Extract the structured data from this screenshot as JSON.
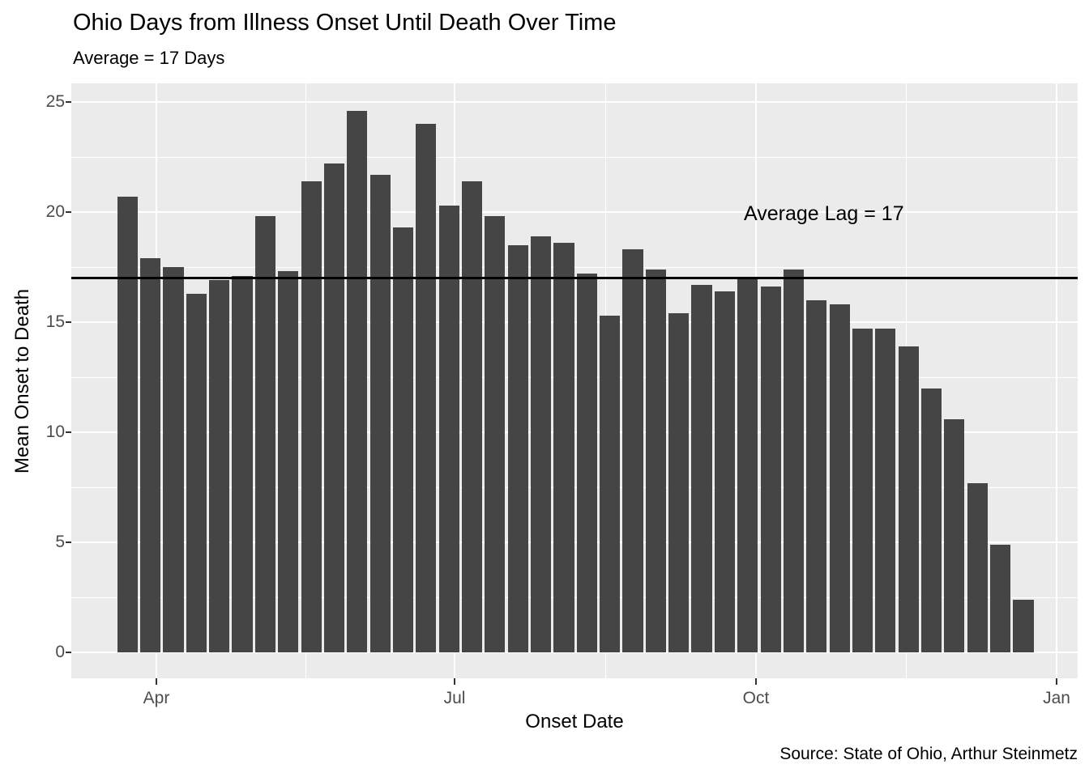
{
  "header": {
    "title": "Ohio Days from Illness Onset Until Death Over Time",
    "subtitle": "Average = 17 Days"
  },
  "axes": {
    "y": {
      "label": "Mean Onset to Death",
      "ticks": [
        0,
        5,
        10,
        15,
        20,
        25
      ],
      "minor_ticks": [
        2.5,
        7.5,
        12.5,
        17.5,
        22.5
      ]
    },
    "x": {
      "label": "Onset Date",
      "ticks": [
        "Apr",
        "Jul",
        "Oct",
        "Jan"
      ]
    }
  },
  "annotation": {
    "text": "Average Lag = 17"
  },
  "caption": {
    "text": "Source: State of Ohio, Arthur Steinmetz"
  },
  "colors": {
    "bar": "#454545",
    "panel_background": "#EBEBEB",
    "gridline": "#FFFFFF",
    "tick_label": "#4D4D4D",
    "reference_line": "#000000"
  },
  "chart_data": {
    "type": "bar",
    "title": "Ohio Days from Illness Onset Until Death Over Time",
    "subtitle": "Average = 17 Days",
    "xlabel": "Onset Date",
    "ylabel": "Mean Onset to Death",
    "x_tick_labels": [
      "Apr",
      "Jul",
      "Oct",
      "Jan"
    ],
    "ylim": [
      0,
      25
    ],
    "grid": true,
    "bar_interval": "weekly",
    "reference_line": {
      "value": 17,
      "label": "Average Lag = 17"
    },
    "values": [
      20.7,
      17.9,
      17.5,
      16.3,
      16.9,
      17.1,
      19.8,
      17.3,
      21.4,
      22.2,
      24.6,
      21.7,
      19.3,
      24.0,
      20.3,
      21.4,
      19.8,
      18.5,
      18.9,
      18.6,
      17.2,
      15.3,
      18.3,
      17.4,
      15.4,
      16.7,
      16.4,
      17.0,
      16.6,
      17.4,
      16.0,
      15.8,
      14.7,
      14.7,
      13.9,
      12.0,
      10.6,
      7.7,
      4.9,
      2.4
    ]
  }
}
